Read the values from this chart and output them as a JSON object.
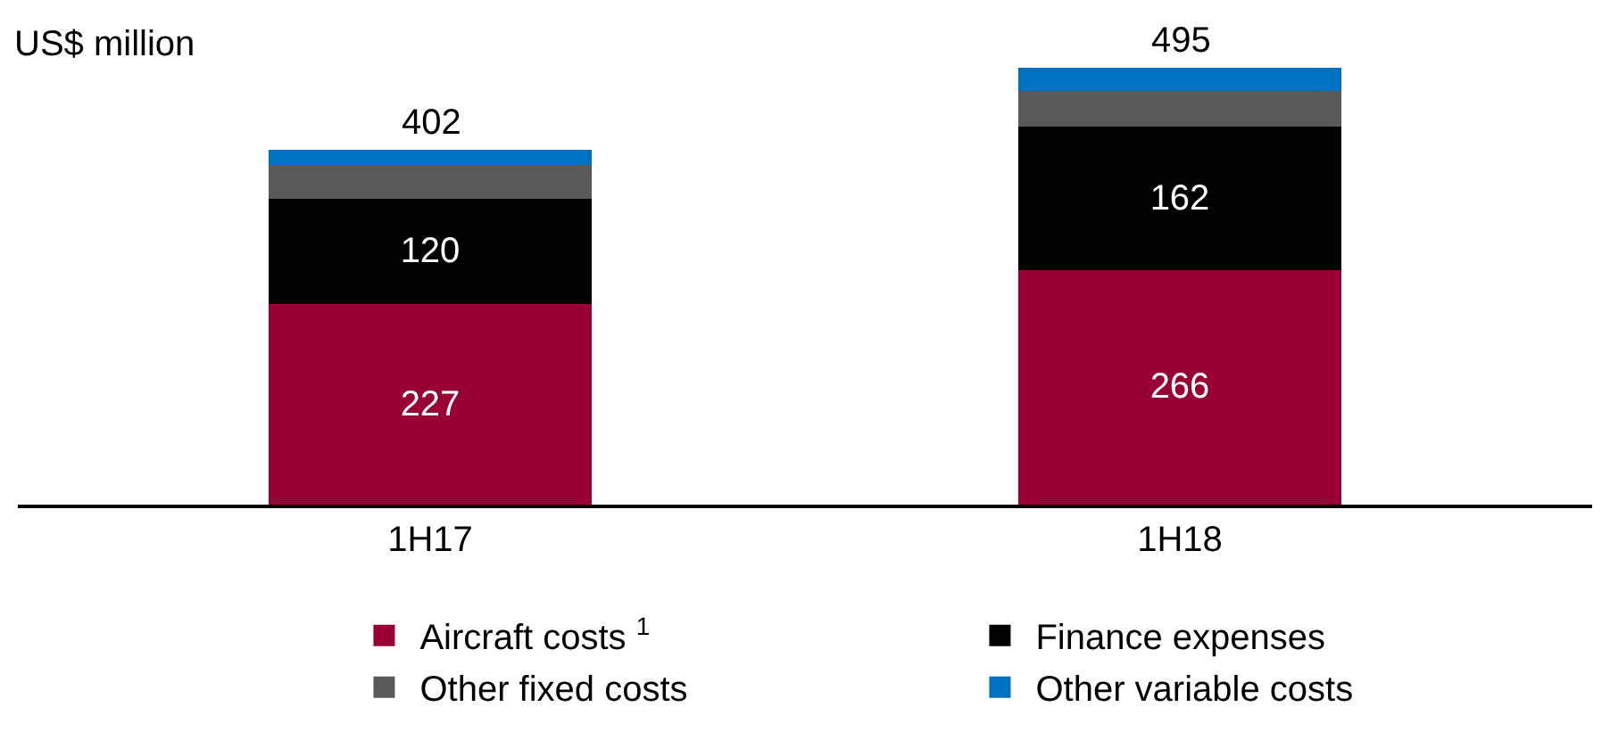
{
  "chart_data": {
    "type": "bar",
    "stacked": true,
    "ylabel": "US$ million",
    "categories": [
      "1H17",
      "1H18"
    ],
    "series": [
      {
        "name": "Aircraft costs $^{1}$",
        "color": "#990033",
        "values": [
          227,
          266
        ],
        "value_labels": [
          "227",
          "266"
        ]
      },
      {
        "name": "Finance expenses",
        "color": "#000000",
        "values": [
          120,
          162
        ],
        "value_labels": [
          "120",
          "162"
        ]
      },
      {
        "name": "Other fixed costs",
        "color": "#595959",
        "values": [
          38,
          41
        ],
        "value_labels": [
          null,
          null
        ]
      },
      {
        "name": "Other variable costs",
        "color": "#0070c0",
        "values": [
          17,
          26
        ],
        "value_labels": [
          null,
          null
        ]
      }
    ],
    "totals": [
      "402",
      "495"
    ],
    "legend": "bottom"
  }
}
